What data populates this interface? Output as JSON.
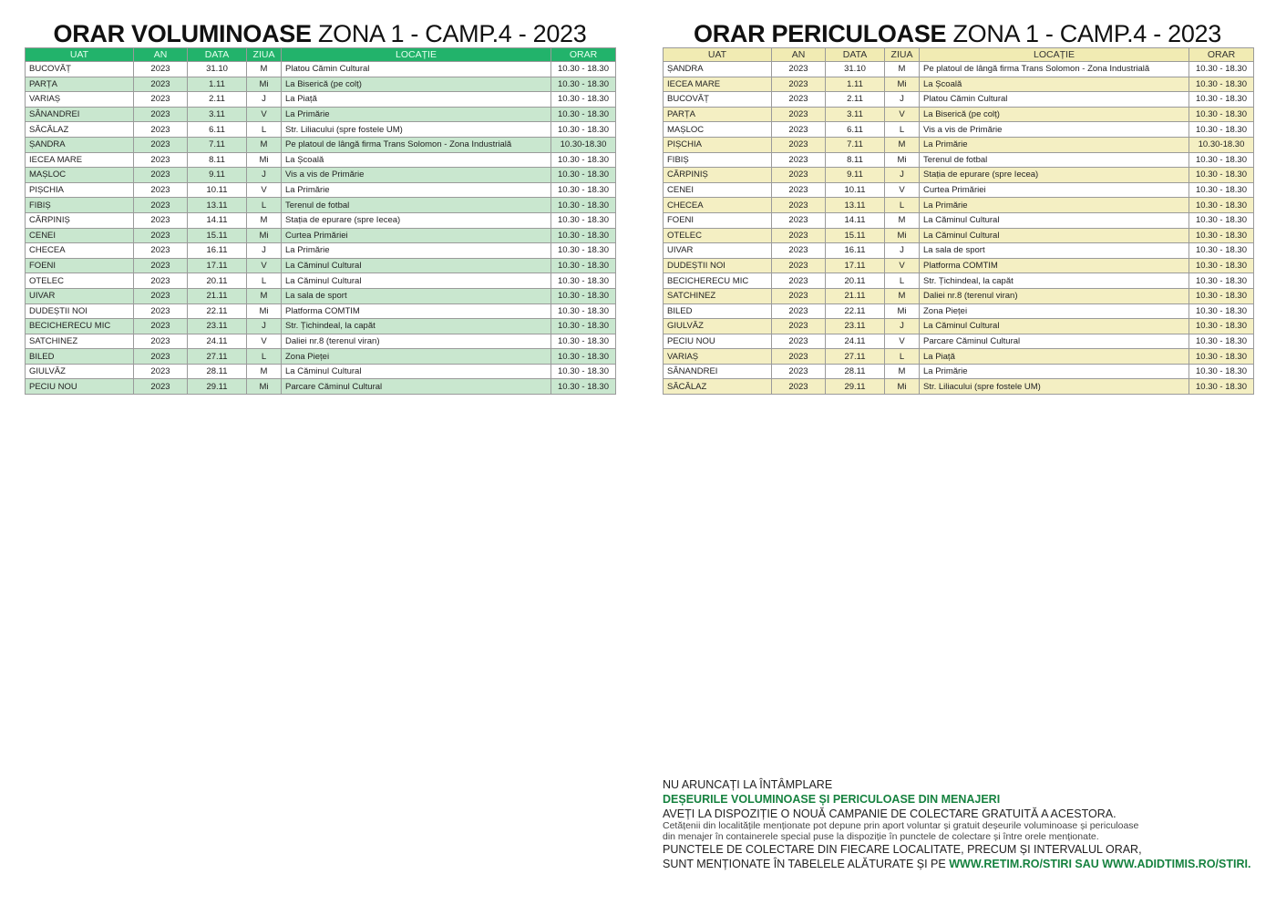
{
  "left": {
    "title_bold": "ORAR VOLUMINOASE",
    "title_rest": "ZONA 1 - CAMP.4 - 2023",
    "columns": [
      "UAT",
      "AN",
      "DATA",
      "ZIUA",
      "LOCAȚIE",
      "ORAR"
    ],
    "rows": [
      [
        "BUCOVĂȚ",
        "2023",
        "31.10",
        "M",
        "Platou Cămin Cultural",
        "10.30 - 18.30"
      ],
      [
        "PARȚA",
        "2023",
        "1.11",
        "Mi",
        "La Biserică (pe colț)",
        "10.30 - 18.30"
      ],
      [
        "VARIAȘ",
        "2023",
        "2.11",
        "J",
        "La Piață",
        "10.30 - 18.30"
      ],
      [
        "SÂNANDREI",
        "2023",
        "3.11",
        "V",
        "La Primărie",
        "10.30 - 18.30"
      ],
      [
        "SĂCĂLAZ",
        "2023",
        "6.11",
        "L",
        "Str. Liliacului (spre fostele UM)",
        "10.30 - 18.30"
      ],
      [
        "ȘANDRA",
        "2023",
        "7.11",
        "M",
        "Pe platoul de lângă firma Trans Solomon - Zona Industrială",
        "10.30-18.30"
      ],
      [
        "IECEA MARE",
        "2023",
        "8.11",
        "Mi",
        "La Școală",
        "10.30 - 18.30"
      ],
      [
        "MAȘLOC",
        "2023",
        "9.11",
        "J",
        "Vis a vis de Primărie",
        "10.30 - 18.30"
      ],
      [
        "PIȘCHIA",
        "2023",
        "10.11",
        "V",
        "La Primărie",
        "10.30 - 18.30"
      ],
      [
        "FIBIȘ",
        "2023",
        "13.11",
        "L",
        "Terenul de fotbal",
        "10.30 - 18.30"
      ],
      [
        "CĂRPINIȘ",
        "2023",
        "14.11",
        "M",
        "Stația de epurare (spre Iecea)",
        "10.30 - 18.30"
      ],
      [
        "CENEI",
        "2023",
        "15.11",
        "Mi",
        "Curtea Primăriei",
        "10.30 - 18.30"
      ],
      [
        "CHECEA",
        "2023",
        "16.11",
        "J",
        "La Primărie",
        "10.30 - 18.30"
      ],
      [
        "FOENI",
        "2023",
        "17.11",
        "V",
        "La Căminul Cultural",
        "10.30 - 18.30"
      ],
      [
        "OTELEC",
        "2023",
        "20.11",
        "L",
        "La Căminul Cultural",
        "10.30 - 18.30"
      ],
      [
        "UIVAR",
        "2023",
        "21.11",
        "M",
        "La sala de sport",
        "10.30 - 18.30"
      ],
      [
        "DUDEȘTII NOI",
        "2023",
        "22.11",
        "Mi",
        "Platforma COMTIM",
        "10.30 - 18.30"
      ],
      [
        "BECICHERECU MIC",
        "2023",
        "23.11",
        "J",
        "Str. Țichindeal, la capăt",
        "10.30 - 18.30"
      ],
      [
        "SATCHINEZ",
        "2023",
        "24.11",
        "V",
        "Daliei nr.8 (terenul viran)",
        "10.30 - 18.30"
      ],
      [
        "BILED",
        "2023",
        "27.11",
        "L",
        "Zona Pieței",
        "10.30 - 18.30"
      ],
      [
        "GIULVĂZ",
        "2023",
        "28.11",
        "M",
        "La Căminul Cultural",
        "10.30 - 18.30"
      ],
      [
        "PECIU NOU",
        "2023",
        "29.11",
        "Mi",
        "Parcare Căminul Cultural",
        "10.30 - 18.30"
      ]
    ]
  },
  "right": {
    "title_bold": "ORAR PERICULOASE",
    "title_rest": "ZONA 1 - CAMP.4 - 2023",
    "columns": [
      "UAT",
      "AN",
      "DATA",
      "ZIUA",
      "LOCAȚIE",
      "ORAR"
    ],
    "rows": [
      [
        "ȘANDRA",
        "2023",
        "31.10",
        "M",
        "Pe platoul de lângă firma Trans Solomon - Zona Industrială",
        "10.30 - 18.30"
      ],
      [
        "IECEA MARE",
        "2023",
        "1.11",
        "Mi",
        "La Școală",
        "10.30 - 18.30"
      ],
      [
        "BUCOVĂȚ",
        "2023",
        "2.11",
        "J",
        "Platou Cămin Cultural",
        "10.30 - 18.30"
      ],
      [
        "PARȚA",
        "2023",
        "3.11",
        "V",
        "La Biserică (pe colț)",
        "10.30 - 18.30"
      ],
      [
        "MAȘLOC",
        "2023",
        "6.11",
        "L",
        "Vis a vis de Primărie",
        "10.30 - 18.30"
      ],
      [
        "PIȘCHIA",
        "2023",
        "7.11",
        "M",
        "La Primărie",
        "10.30-18.30"
      ],
      [
        "FIBIȘ",
        "2023",
        "8.11",
        "Mi",
        "Terenul de fotbal",
        "10.30 - 18.30"
      ],
      [
        "CĂRPINIȘ",
        "2023",
        "9.11",
        "J",
        "Stația de epurare (spre Iecea)",
        "10.30 - 18.30"
      ],
      [
        "CENEI",
        "2023",
        "10.11",
        "V",
        "Curtea Primăriei",
        "10.30 - 18.30"
      ],
      [
        "CHECEA",
        "2023",
        "13.11",
        "L",
        "La Primărie",
        "10.30 - 18.30"
      ],
      [
        "FOENI",
        "2023",
        "14.11",
        "M",
        "La Căminul Cultural",
        "10.30 - 18.30"
      ],
      [
        "OTELEC",
        "2023",
        "15.11",
        "Mi",
        "La Căminul Cultural",
        "10.30 - 18.30"
      ],
      [
        "UIVAR",
        "2023",
        "16.11",
        "J",
        "La sala de sport",
        "10.30 - 18.30"
      ],
      [
        "DUDEȘTII NOI",
        "2023",
        "17.11",
        "V",
        "Platforma COMTIM",
        "10.30 - 18.30"
      ],
      [
        "BECICHERECU MIC",
        "2023",
        "20.11",
        "L",
        "Str. Țichindeal, la capăt",
        "10.30 - 18.30"
      ],
      [
        "SATCHINEZ",
        "2023",
        "21.11",
        "M",
        "Daliei nr.8 (terenul viran)",
        "10.30 - 18.30"
      ],
      [
        "BILED",
        "2023",
        "22.11",
        "Mi",
        "Zona Pieței",
        "10.30 - 18.30"
      ],
      [
        "GIULVĂZ",
        "2023",
        "23.11",
        "J",
        "La Căminul Cultural",
        "10.30 - 18.30"
      ],
      [
        "PECIU NOU",
        "2023",
        "24.11",
        "V",
        "Parcare Căminul Cultural",
        "10.30 - 18.30"
      ],
      [
        "VARIAȘ",
        "2023",
        "27.11",
        "L",
        "La Piață",
        "10.30 - 18.30"
      ],
      [
        "SÂNANDREI",
        "2023",
        "28.11",
        "M",
        "La Primărie",
        "10.30 - 18.30"
      ],
      [
        "SĂCĂLAZ",
        "2023",
        "29.11",
        "Mi",
        "Str. Liliacului (spre fostele UM)",
        "10.30 - 18.30"
      ]
    ]
  },
  "footer": {
    "line1": "NU ARUNCAȚI LA ÎNTÂMPLARE",
    "line2": "DEȘEURILE VOLUMINOASE ȘI PERICULOASE DIN MENAJERI",
    "line3": "AVEȚI LA DISPOZIȚIE O NOUĂ CAMPANIE DE COLECTARE GRATUITĂ A ACESTORA.",
    "note1": "Cetățenii din localitățile menționate pot depune prin aport voluntar și gratuit deșeurile voluminoase și periculoase",
    "note2": "din menajer în containerele special puse la dispoziție în punctele de colectare și între orele menționate.",
    "line4": "PUNCTELE DE COLECTARE DIN FIECARE LOCALITATE, PRECUM ȘI INTERVALUL ORAR,",
    "line5": "SUNT MENȚIONATE ÎN TABELELE ALĂTURATE ȘI PE",
    "links": "WWW.RETIM.RO/STIRI SAU WWW.ADIDTIMIS.RO/STIRI."
  }
}
